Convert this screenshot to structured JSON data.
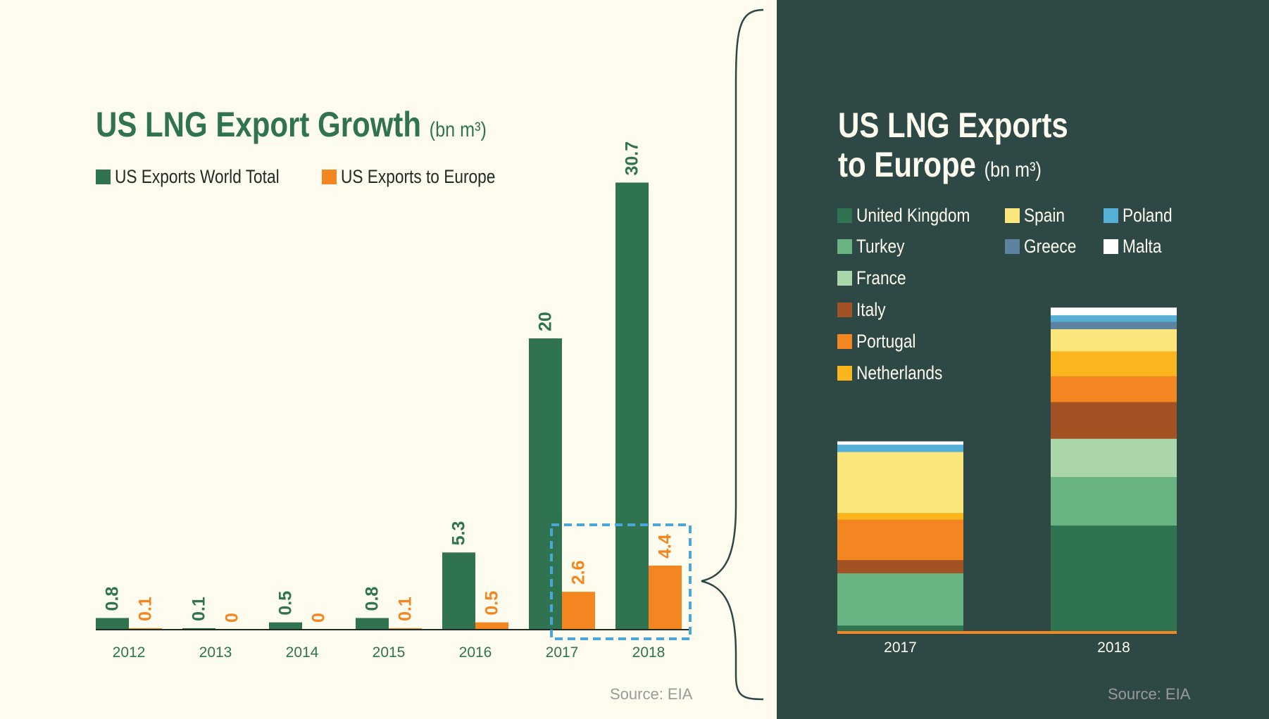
{
  "left": {
    "title": "US LNG Export Growth",
    "unit": "(bn m³)",
    "source": "Source: EIA",
    "legend": [
      {
        "label": "US Exports World Total",
        "color": "#2f7350"
      },
      {
        "label": "US Exports to Europe",
        "color": "#f38620"
      }
    ]
  },
  "right": {
    "title_line1": "US LNG Exports",
    "title_line2": "to Europe",
    "unit": "(bn m³)",
    "source": "Source: EIA"
  },
  "colors": {
    "left_background": "#fefcef",
    "right_background": "#2d4845",
    "highlight_box": "#4aa8d8"
  },
  "chart_data": [
    {
      "type": "bar",
      "title": "US LNG Export Growth (bn m³)",
      "categories": [
        "2012",
        "2013",
        "2014",
        "2015",
        "2016",
        "2017",
        "2018"
      ],
      "series": [
        {
          "name": "US Exports World Total",
          "color": "#2f7350",
          "values": [
            0.8,
            0.1,
            0.5,
            0.8,
            5.3,
            20,
            30.7
          ],
          "labels": [
            "0.8",
            "0.1",
            "0.5",
            "0.8",
            "5.3",
            "20",
            "30.7"
          ]
        },
        {
          "name": "US Exports to Europe",
          "color": "#f38620",
          "values": [
            0.1,
            0,
            0,
            0.1,
            0.5,
            2.6,
            4.4
          ],
          "labels": [
            "0.1",
            "0",
            "0",
            "0.1",
            "0.5",
            "2.6",
            "4.4"
          ]
        }
      ],
      "highlight": [
        "2017",
        "2018"
      ],
      "legend": "top-left",
      "grid": false
    },
    {
      "type": "bar",
      "stacked": true,
      "title": "US LNG Exports to Europe (bn m³)",
      "categories": [
        "2017",
        "2018"
      ],
      "series": [
        {
          "name": "United Kingdom",
          "color": "#2f7350",
          "values": [
            0.08,
            1.44
          ]
        },
        {
          "name": "Turkey",
          "color": "#69b382",
          "values": [
            0.71,
            0.66
          ]
        },
        {
          "name": "France",
          "color": "#aad6a9",
          "values": [
            0,
            0.52
          ]
        },
        {
          "name": "Italy",
          "color": "#a35224",
          "values": [
            0.18,
            0.5
          ]
        },
        {
          "name": "Portugal",
          "color": "#f38620",
          "values": [
            0.55,
            0.35
          ]
        },
        {
          "name": "Netherlands",
          "color": "#fbb61e",
          "values": [
            0.09,
            0.34
          ]
        },
        {
          "name": "Spain",
          "color": "#fbe67c",
          "values": [
            0.83,
            0.3
          ]
        },
        {
          "name": "Greece",
          "color": "#5e83a0",
          "values": [
            0,
            0.1
          ]
        },
        {
          "name": "Poland",
          "color": "#55afd6",
          "values": [
            0.1,
            0.09
          ]
        },
        {
          "name": "Malta",
          "color": "#ffffff",
          "values": [
            0.04,
            0.1
          ]
        }
      ],
      "legend": "top-left",
      "grid": false
    }
  ]
}
